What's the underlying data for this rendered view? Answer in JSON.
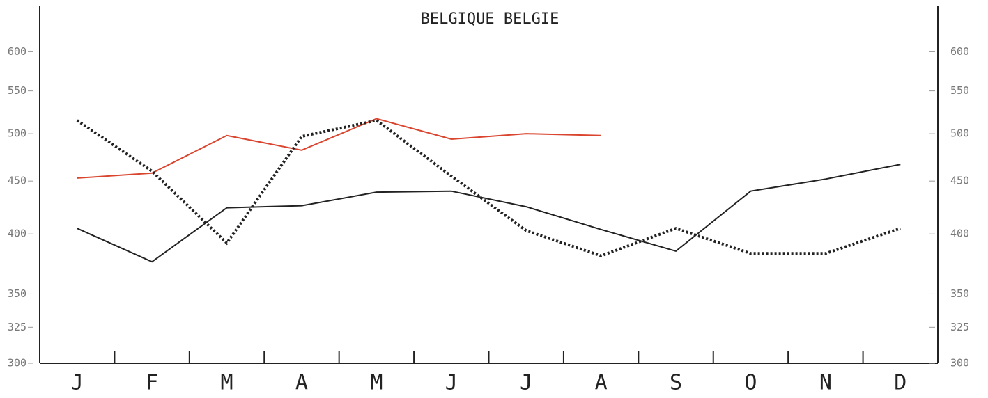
{
  "chart_data": {
    "type": "line",
    "title": "BELGIQUE BELGIE",
    "categories": [
      "J",
      "F",
      "M",
      "A",
      "M",
      "J",
      "J",
      "A",
      "S",
      "O",
      "N",
      "D"
    ],
    "series": [
      {
        "color": "#d9452f",
        "style": "solid",
        "values": [
          453,
          458,
          498,
          482,
          517,
          494,
          500,
          498,
          null,
          null,
          null,
          null
        ]
      },
      {
        "color": "#222222",
        "style": "solid",
        "values": [
          405,
          376,
          424,
          426,
          439,
          440,
          425,
          404,
          385,
          440,
          452,
          467
        ]
      },
      {
        "color": "#222222",
        "style": "dotted",
        "values": [
          515,
          460,
          392,
          497,
          515,
          455,
          403,
          381,
          405,
          383,
          383,
          405
        ]
      }
    ],
    "log_scale": true,
    "ylim": [
      300,
      665
    ],
    "yticks": [
      300,
      325,
      350,
      400,
      450,
      500,
      550,
      600
    ],
    "y2lim": [
      300,
      665
    ],
    "y2ticks": [
      300,
      325,
      350,
      400,
      450,
      500,
      550,
      600
    ]
  }
}
